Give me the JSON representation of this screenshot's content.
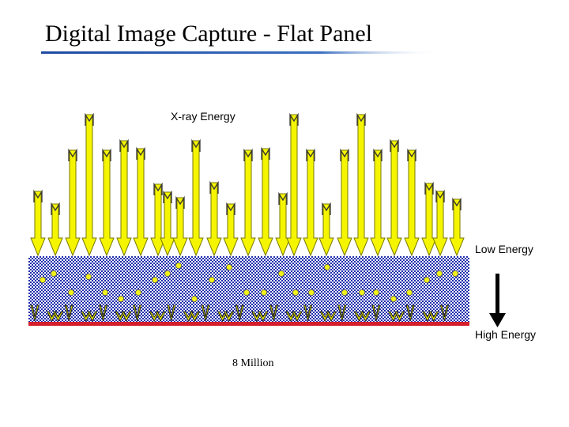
{
  "title": "Digital Image Capture - Flat Panel",
  "diagram": {
    "incoming_label": "X-ray Energy",
    "low_energy_label": "Low Energy",
    "high_energy_label": "High Energy",
    "count_label": "8 Million"
  },
  "colors": {
    "arrow_fill": "#f5f500",
    "arrow_stroke": "#7a7a00",
    "scintillator_blue": "#1f2fae",
    "detector_red": "#d41e2c",
    "particle_yellow": "#f2f21a",
    "title_rule": "#1f4aa0"
  }
}
